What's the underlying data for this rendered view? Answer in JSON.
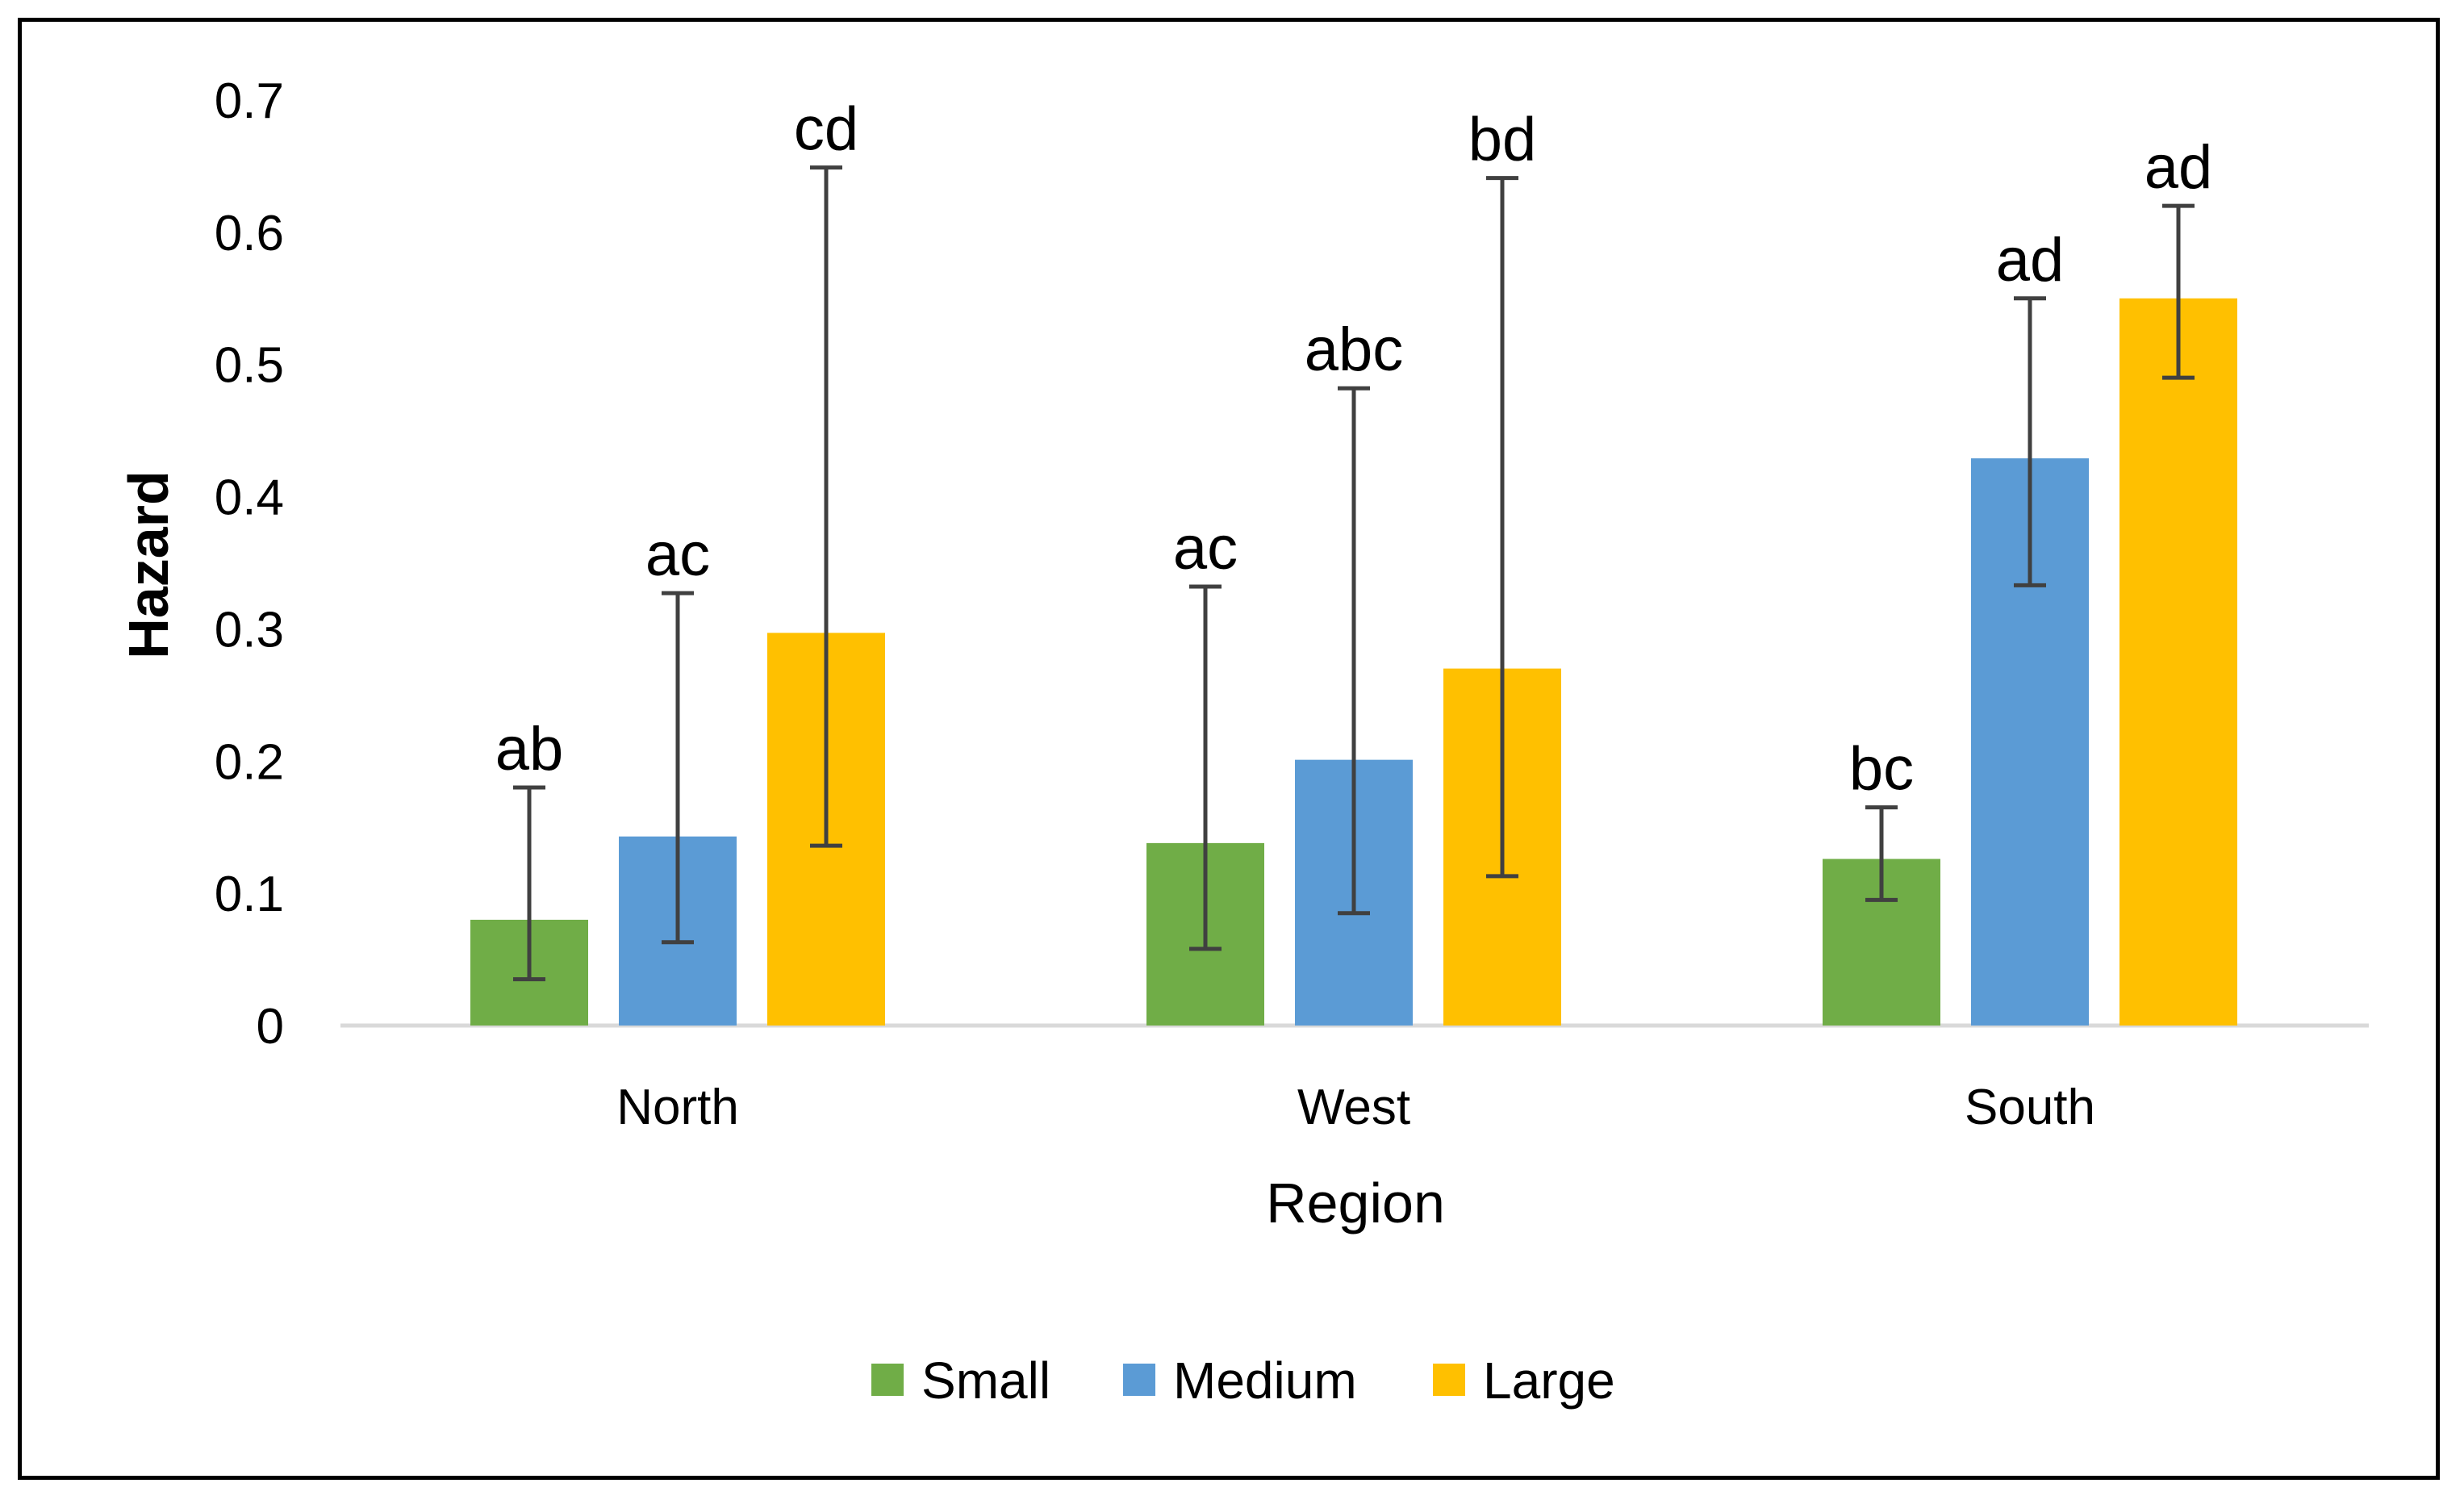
{
  "chart_data": {
    "type": "bar",
    "title": "",
    "xlabel": "Region",
    "ylabel": "Hazard",
    "ylim": [
      0,
      0.7
    ],
    "yticks": [
      "0",
      "0.1",
      "0.2",
      "0.3",
      "0.4",
      "0.5",
      "0.6",
      "0.7"
    ],
    "grid": false,
    "legend_position": "bottom",
    "categories": [
      "North",
      "West",
      "South"
    ],
    "series": [
      {
        "name": "Small",
        "color": "#70ad47",
        "values": [
          0.08,
          0.138,
          0.126
        ],
        "error_low": [
          0.035,
          0.058,
          0.095
        ],
        "error_high": [
          0.18,
          0.332,
          0.165
        ],
        "labels": [
          "ab",
          "ac",
          "bc"
        ]
      },
      {
        "name": "Medium",
        "color": "#5b9bd5",
        "values": [
          0.143,
          0.201,
          0.429
        ],
        "error_low": [
          0.063,
          0.085,
          0.333
        ],
        "error_high": [
          0.327,
          0.482,
          0.55
        ],
        "labels": [
          "ac",
          "abc",
          "ad"
        ]
      },
      {
        "name": "Large",
        "color": "#ffc000",
        "values": [
          0.297,
          0.27,
          0.55
        ],
        "error_low": [
          0.136,
          0.113,
          0.49
        ],
        "error_high": [
          0.649,
          0.641,
          0.62
        ],
        "labels": [
          "cd",
          "bd",
          "ad"
        ]
      }
    ]
  }
}
